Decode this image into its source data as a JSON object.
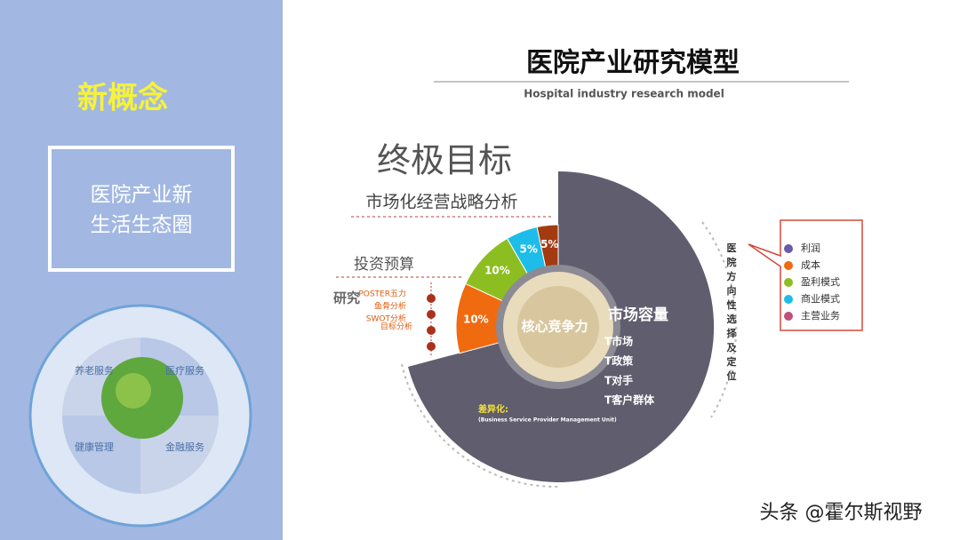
{
  "left_panel": {
    "headline": "新概念",
    "box_text": [
      "医院产业新",
      "生活生态圈"
    ],
    "ecosystem": {
      "quadrants": [
        "养老服务",
        "医疗服务",
        "健康管理",
        "金融服务"
      ]
    }
  },
  "header": {
    "title": "医院产业研究模型",
    "subtitle": "Hospital industry research model"
  },
  "diagram": {
    "goal": "终极目标",
    "strategy": "市场化经营战略分析",
    "budget": "投资预算",
    "research": "研究",
    "methods": [
      "POSTER五力",
      "鱼骨分析",
      "SWOT分析",
      "目标分析"
    ],
    "wedges": [
      "10%",
      "10%",
      "5%",
      "5%"
    ],
    "core": "核心竞争力",
    "market": "市场容量",
    "market_items": [
      "T市场",
      "T政策",
      "T对手",
      "T客户群体"
    ],
    "differentiation": "差异化:",
    "differentiation_note": "(Business Service Provider Management Unit)",
    "side_label": "医院方向性选择及定位"
  },
  "legend": [
    "利润",
    "成本",
    "盈利模式",
    "商业模式",
    "主营业务"
  ],
  "watermark": "头条 @霍尔斯视野"
}
